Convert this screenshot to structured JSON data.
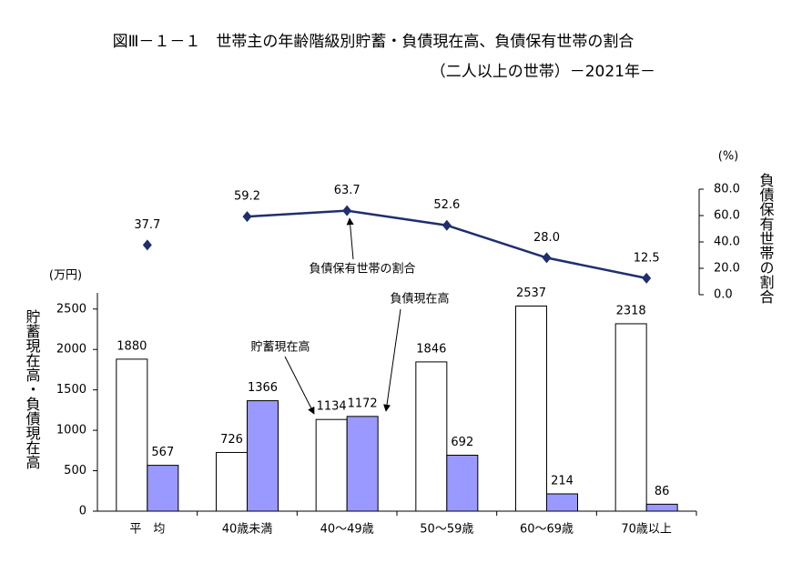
{
  "header": {
    "title": "図Ⅲ－１－１　世帯主の年齢階級別貯蓄・負債現在高、負債保有世帯の割合",
    "subtitle": "（二人以上の世帯）－2021年－"
  },
  "chart_data": [
    {
      "type": "line",
      "categories": [
        "平　均",
        "40歳未満",
        "40～49歳",
        "50～59歳",
        "60～69歳",
        "70歳以上"
      ],
      "series": [
        {
          "name": "負債保有世帯の割合",
          "color": "#1f2f6e",
          "axis": "y2",
          "values": [
            37.7,
            59.2,
            63.7,
            52.6,
            28.0,
            12.5
          ],
          "value_labels": [
            "37.7",
            "59.2",
            "63.7",
            "52.6",
            "28.0",
            "12.5"
          ]
        }
      ],
      "line_start": 1,
      "y2lim": [
        0,
        80
      ],
      "y2ticks": [
        {
          "value": 0,
          "label": "0.0"
        },
        {
          "value": 20,
          "label": "20.0"
        },
        {
          "value": 40,
          "label": "40.0"
        },
        {
          "value": 60,
          "label": "60.0"
        },
        {
          "value": 80,
          "label": "80.0"
        }
      ],
      "y2_label": "負債保有世帯の割合",
      "y2_unit": "(%)"
    },
    {
      "type": "bar",
      "categories": [
        "平　均",
        "40歳未満",
        "40～49歳",
        "50～59歳",
        "60～69歳",
        "70歳以上"
      ],
      "series": [
        {
          "name": "貯蓄現在高",
          "color": "#ffffff",
          "values": [
            1880,
            726,
            1134,
            1846,
            2537,
            2318
          ]
        },
        {
          "name": "負債現在高",
          "color": "#9999ff",
          "values": [
            567,
            1366,
            1172,
            692,
            214,
            86
          ]
        }
      ],
      "ylim": [
        0,
        2700
      ],
      "yticks": [
        0,
        500,
        1000,
        1500,
        2000,
        2500
      ],
      "y_label": "貯蓄現在高・負債現在高",
      "y_unit": "(万円)"
    }
  ]
}
